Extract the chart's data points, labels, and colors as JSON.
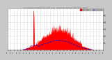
{
  "title": "Solar PV/Inverter Performance East Array  Actual & Running Average Power Output",
  "bg_color": "#c8c8c8",
  "plot_bg_color": "#ffffff",
  "bar_color": "#ff0000",
  "avg_color": "#0000cc",
  "ylim": [
    0,
    6.0
  ],
  "num_points": 400,
  "legend_entries": [
    "Actual Power",
    "Running Avg"
  ],
  "legend_colors": [
    "#ff0000",
    "#0000cc"
  ],
  "grid_color": "#aaaaaa",
  "spine_color": "#888888"
}
